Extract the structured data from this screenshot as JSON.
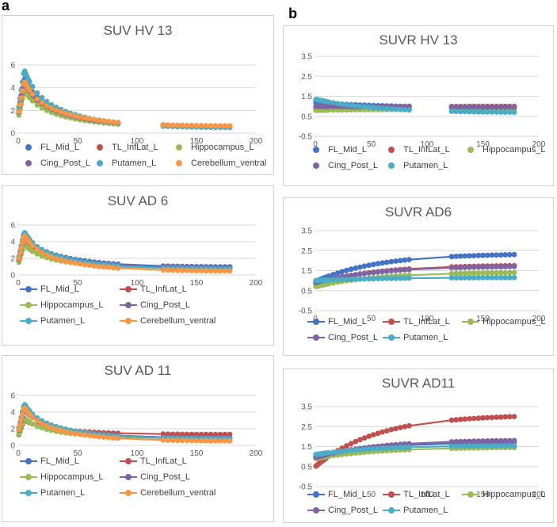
{
  "figure": {
    "panel_a": "a",
    "panel_b": "b"
  },
  "colors": {
    "FL_Mid_L": "#4472c4",
    "TL_InfLat_L": "#c0504d",
    "Hippocampus_L": "#9bbb59",
    "Cing_Post_L": "#8064a2",
    "Putamen_L": "#4bacc6",
    "Cerebellum_ventral": "#f79646"
  },
  "chart_data": [
    {
      "id": "suv_hv13",
      "type": "scatter",
      "title": "SUV HV 13",
      "xlim": [
        0,
        200
      ],
      "ylim": [
        0,
        6
      ],
      "xticks": [
        "0",
        "50",
        "100",
        "150",
        "200"
      ],
      "yticks": [
        "0",
        "2",
        "4",
        "6"
      ],
      "grid": true,
      "legend_rows": [
        [
          "FL_Mid_L",
          "TL_InfLat_L",
          "Hippocampus_L"
        ],
        [
          "Cing_Post_L",
          "Putamen_L",
          "Cerebellum_ventral"
        ]
      ],
      "series": [
        {
          "name": "FL_Mid_L",
          "peak": 4.9,
          "end": 0.55
        },
        {
          "name": "TL_InfLat_L",
          "peak": 4.2,
          "end": 0.6
        },
        {
          "name": "Hippocampus_L",
          "peak": 3.8,
          "end": 0.5
        },
        {
          "name": "Cing_Post_L",
          "peak": 4.5,
          "end": 0.55
        },
        {
          "name": "Putamen_L",
          "peak": 5.6,
          "end": 0.45
        },
        {
          "name": "Cerebellum_ventral",
          "peak": 4.6,
          "end": 0.6
        }
      ]
    },
    {
      "id": "suv_ad6",
      "type": "line",
      "title": "SUV AD 6",
      "xlim": [
        0,
        200
      ],
      "ylim": [
        0,
        6
      ],
      "xticks": [
        "0",
        "50",
        "100",
        "150",
        "200"
      ],
      "yticks": [
        "0",
        "2",
        "4",
        "6"
      ],
      "grid": true,
      "legend_rows": [
        [
          "FL_Mid_L",
          "TL_InfLat_L"
        ],
        [
          "Hippocampus_L",
          "Cing_Post_L"
        ],
        [
          "Putamen_L",
          "Cerebellum_ventral"
        ]
      ],
      "series": [
        {
          "name": "FL_Mid_L",
          "peak": 5.0,
          "end": 0.95
        },
        {
          "name": "TL_InfLat_L",
          "peak": 4.3,
          "end": 0.8
        },
        {
          "name": "Hippocampus_L",
          "peak": 3.7,
          "end": 0.75
        },
        {
          "name": "Cing_Post_L",
          "peak": 4.6,
          "end": 0.85
        },
        {
          "name": "Putamen_L",
          "peak": 5.2,
          "end": 0.7
        },
        {
          "name": "Cerebellum_ventral",
          "peak": 4.8,
          "end": 0.45
        }
      ]
    },
    {
      "id": "suv_ad11",
      "type": "line",
      "title": "SUV AD 11",
      "xlim": [
        0,
        200
      ],
      "ylim": [
        0,
        6
      ],
      "xticks": [
        "0",
        "50",
        "100",
        "150",
        "200"
      ],
      "yticks": [
        "0",
        "2",
        "4",
        "6"
      ],
      "grid": true,
      "legend_rows": [
        [
          "FL_Mid_L",
          "TL_InfLat_L"
        ],
        [
          "Hippocampus_L",
          "Cing_Post_L"
        ],
        [
          "Putamen_L",
          "Cerebellum_ventral"
        ]
      ],
      "series": [
        {
          "name": "FL_Mid_L",
          "peak": 4.6,
          "end": 0.85
        },
        {
          "name": "TL_InfLat_L",
          "peak": 3.1,
          "end": 1.3
        },
        {
          "name": "Hippocampus_L",
          "peak": 3.3,
          "end": 0.8
        },
        {
          "name": "Cing_Post_L",
          "peak": 4.4,
          "end": 0.85
        },
        {
          "name": "Putamen_L",
          "peak": 5.0,
          "end": 0.75
        },
        {
          "name": "Cerebellum_ventral",
          "peak": 4.6,
          "end": 0.5
        }
      ]
    },
    {
      "id": "suvr_hv13",
      "type": "scatter",
      "title": "SUVR HV 13",
      "xlim": [
        0,
        200
      ],
      "ylim": [
        -0.5,
        3.5
      ],
      "xticks": [
        "0",
        "50",
        "100",
        "150",
        "200"
      ],
      "yticks": [
        "-0.5",
        "0.5",
        "1.5",
        "2.5",
        "3.5"
      ],
      "grid": true,
      "legend_rows": [
        [
          "FL_Mid_L",
          "TL_InfLat_L",
          "Hippocampus_L"
        ],
        [
          "Cing_Post_L",
          "Putamen_L"
        ]
      ],
      "series": [
        {
          "name": "FL_Mid_L",
          "start": 1.2,
          "end": 0.95
        },
        {
          "name": "TL_InfLat_L",
          "start": 0.9,
          "end": 1.0
        },
        {
          "name": "Hippocampus_L",
          "start": 0.8,
          "end": 0.85
        },
        {
          "name": "Cing_Post_L",
          "start": 1.0,
          "end": 0.95
        },
        {
          "name": "Putamen_L",
          "start": 1.35,
          "end": 0.7
        }
      ]
    },
    {
      "id": "suvr_ad6",
      "type": "line",
      "title": "SUVR AD6",
      "xlim": [
        0,
        200
      ],
      "ylim": [
        -0.5,
        3.5
      ],
      "xticks": [
        "0",
        "50",
        "100",
        "150",
        "200"
      ],
      "yticks": [
        "-0.5",
        "0.5",
        "1.5",
        "2.5",
        "3.5"
      ],
      "grid": true,
      "legend_rows": [
        [
          "FL_Mid_L",
          "TL_InfLat_L",
          "Hippocampus_L"
        ],
        [
          "Cing_Post_L",
          "Putamen_L"
        ]
      ],
      "series": [
        {
          "name": "FL_Mid_L",
          "start": 0.95,
          "end": 2.3
        },
        {
          "name": "TL_InfLat_L",
          "start": 0.85,
          "end": 1.75
        },
        {
          "name": "Hippocampus_L",
          "start": 0.7,
          "end": 1.4
        },
        {
          "name": "Cing_Post_L",
          "start": 0.9,
          "end": 1.7
        },
        {
          "name": "Putamen_L",
          "start": 1.0,
          "end": 1.15
        }
      ]
    },
    {
      "id": "suvr_ad11",
      "type": "line",
      "title": "SUVR AD11",
      "xlim": [
        0,
        200
      ],
      "ylim": [
        -0.5,
        3.5
      ],
      "xticks": [
        "0",
        "50",
        "100",
        "150",
        "200"
      ],
      "yticks": [
        "-0.5",
        "0.5",
        "1.5",
        "2.5",
        "3.5"
      ],
      "grid": true,
      "legend_rows": [
        [
          "FL_Mid_L",
          "TL_InfLat_L",
          "Hippocampus_L"
        ],
        [
          "Cing_Post_L",
          "Putamen_L"
        ]
      ],
      "series": [
        {
          "name": "FL_Mid_L",
          "start": 1.0,
          "end": 1.7
        },
        {
          "name": "TL_InfLat_L",
          "start": 0.5,
          "end": 3.0
        },
        {
          "name": "Hippocampus_L",
          "start": 0.9,
          "end": 1.45
        },
        {
          "name": "Cing_Post_L",
          "start": 0.95,
          "end": 1.8
        },
        {
          "name": "Putamen_L",
          "start": 1.1,
          "end": 1.55
        }
      ]
    }
  ]
}
